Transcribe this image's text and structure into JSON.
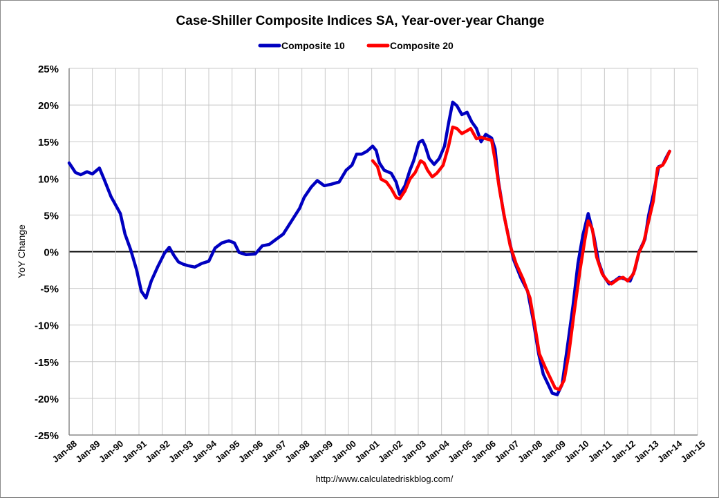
{
  "chart_data": {
    "type": "line",
    "title": "Case-Shiller Composite Indices SA, Year-over-year Change",
    "xlabel": "",
    "ylabel": "YoY Change",
    "source": "http://www.calculatedriskblog.com/",
    "xlim": [
      1988,
      2015
    ],
    "ylim": [
      -25,
      25
    ],
    "yticks": [
      25,
      20,
      15,
      10,
      5,
      0,
      -5,
      -10,
      -15,
      -20,
      -25
    ],
    "ytick_labels": [
      "25%",
      "20%",
      "15%",
      "10%",
      "5%",
      "0%",
      "-5%",
      "-10%",
      "-15%",
      "-20%",
      "-25%"
    ],
    "xtick_labels": [
      "Jan-88",
      "Jan-89",
      "Jan-90",
      "Jan-91",
      "Jan-92",
      "Jan-93",
      "Jan-94",
      "Jan-95",
      "Jan-96",
      "Jan-97",
      "Jan-98",
      "Jan-99",
      "Jan-00",
      "Jan-01",
      "Jan-02",
      "Jan-03",
      "Jan-04",
      "Jan-05",
      "Jan-06",
      "Jan-07",
      "Jan-08",
      "Jan-09",
      "Jan-10",
      "Jan-11",
      "Jan-12",
      "Jan-13",
      "Jan-14",
      "Jan-15"
    ],
    "grid": true,
    "legend_position": "top-center",
    "series": [
      {
        "name": "Composite 10",
        "color": "#0000c0",
        "x": [
          1988.0,
          1988.27,
          1988.5,
          1988.77,
          1989.0,
          1989.3,
          1989.5,
          1989.8,
          1990.2,
          1990.4,
          1990.64,
          1990.9,
          1991.1,
          1991.3,
          1991.53,
          1991.8,
          1992.1,
          1992.3,
          1992.5,
          1992.7,
          1992.9,
          1993.1,
          1993.4,
          1993.7,
          1994.0,
          1994.27,
          1994.56,
          1994.86,
          1995.1,
          1995.3,
          1995.6,
          1996.0,
          1996.3,
          1996.6,
          1996.9,
          1997.2,
          1997.5,
          1997.9,
          1998.1,
          1998.4,
          1998.66,
          1998.96,
          1999.26,
          1999.6,
          1999.9,
          2000.15,
          2000.35,
          2000.56,
          2000.8,
          2001.04,
          2001.19,
          2001.33,
          2001.54,
          2001.84,
          2002.05,
          2002.2,
          2002.43,
          2002.64,
          2002.8,
          2003.03,
          2003.18,
          2003.3,
          2003.47,
          2003.68,
          2003.9,
          2004.13,
          2004.3,
          2004.48,
          2004.66,
          2004.87,
          2005.1,
          2005.3,
          2005.5,
          2005.7,
          2005.9,
          2006.15,
          2006.3,
          2006.44,
          2006.68,
          2006.9,
          2007.1,
          2007.4,
          2007.7,
          2007.93,
          2008.17,
          2008.37,
          2008.58,
          2008.76,
          2008.97,
          2009.18,
          2009.41,
          2009.65,
          2009.86,
          2010.07,
          2010.3,
          2010.54,
          2010.75,
          2010.96,
          2011.2,
          2011.43,
          2011.64,
          2011.85,
          2012.1,
          2012.3,
          2012.5,
          2012.74,
          2012.9,
          2013.1,
          2013.33,
          2013.5,
          2013.63,
          2013.8
        ],
        "y": [
          12.1,
          10.8,
          10.5,
          10.9,
          10.6,
          11.4,
          9.9,
          7.5,
          5.2,
          2.4,
          0.3,
          -2.5,
          -5.4,
          -6.3,
          -4.0,
          -2.1,
          -0.2,
          0.6,
          -0.5,
          -1.4,
          -1.7,
          -1.9,
          -2.1,
          -1.6,
          -1.3,
          0.5,
          1.2,
          1.5,
          1.2,
          -0.1,
          -0.4,
          -0.3,
          0.8,
          1.0,
          1.7,
          2.4,
          3.9,
          5.9,
          7.4,
          8.8,
          9.7,
          9.0,
          9.2,
          9.5,
          11.1,
          11.8,
          13.3,
          13.3,
          13.7,
          14.4,
          13.8,
          12.1,
          11.1,
          10.7,
          9.5,
          7.8,
          9.0,
          11.1,
          12.4,
          14.9,
          15.2,
          14.4,
          12.7,
          11.9,
          12.7,
          14.4,
          17.5,
          20.4,
          19.9,
          18.7,
          19.0,
          17.7,
          16.8,
          15.0,
          16.0,
          15.5,
          14.0,
          9.7,
          5.0,
          1.7,
          -1.1,
          -3.5,
          -5.4,
          -9.2,
          -13.9,
          -16.7,
          -18.1,
          -19.3,
          -19.5,
          -18.1,
          -12.9,
          -7.3,
          -1.6,
          2.2,
          5.2,
          2.2,
          -1.4,
          -3.3,
          -4.4,
          -4.0,
          -3.5,
          -3.7,
          -4.0,
          -2.5,
          0.1,
          1.7,
          5.0,
          7.8,
          11.6,
          11.8,
          12.7,
          13.7
        ]
      },
      {
        "name": "Composite 20",
        "color": "#ff0000",
        "x": [
          2001.04,
          2001.25,
          2001.4,
          2001.63,
          2001.84,
          2002.05,
          2002.2,
          2002.43,
          2002.64,
          2002.87,
          2003.1,
          2003.25,
          2003.4,
          2003.6,
          2003.8,
          2004.07,
          2004.3,
          2004.48,
          2004.66,
          2004.87,
          2005.1,
          2005.25,
          2005.5,
          2005.7,
          2005.9,
          2006.15,
          2006.3,
          2006.5,
          2006.74,
          2006.95,
          2007.2,
          2007.5,
          2007.8,
          2008.0,
          2008.2,
          2008.46,
          2008.67,
          2008.88,
          2009.06,
          2009.27,
          2009.47,
          2009.7,
          2009.95,
          2010.16,
          2010.3,
          2010.48,
          2010.66,
          2010.9,
          2011.13,
          2011.3,
          2011.6,
          2011.8,
          2012.0,
          2012.25,
          2012.47,
          2012.68,
          2012.9,
          2013.1,
          2013.28,
          2013.5,
          2013.63,
          2013.8
        ],
        "y": [
          12.4,
          11.6,
          9.9,
          9.5,
          8.6,
          7.4,
          7.2,
          8.3,
          9.9,
          10.8,
          12.4,
          12.1,
          11.1,
          10.2,
          10.7,
          11.8,
          14.4,
          17.0,
          16.8,
          16.1,
          16.5,
          16.8,
          15.4,
          15.6,
          15.4,
          15.2,
          12.5,
          8.3,
          4.1,
          0.8,
          -1.6,
          -3.7,
          -6.3,
          -9.9,
          -13.9,
          -15.8,
          -17.2,
          -18.6,
          -18.8,
          -17.5,
          -13.9,
          -8.2,
          -2.5,
          1.7,
          4.2,
          3.1,
          -0.7,
          -3.0,
          -4.0,
          -4.4,
          -3.7,
          -3.5,
          -4.0,
          -3.0,
          -0.2,
          1.2,
          4.2,
          6.9,
          11.4,
          11.8,
          12.5,
          13.7
        ]
      }
    ]
  }
}
